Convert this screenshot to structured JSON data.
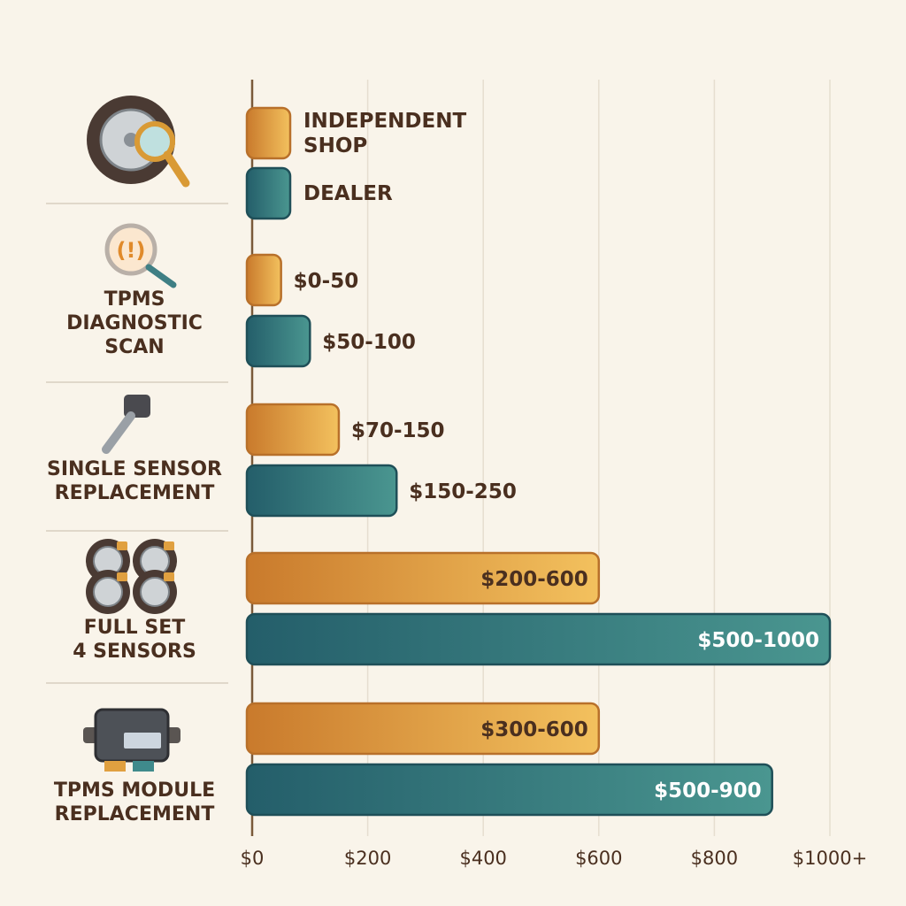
{
  "chart_data": {
    "type": "bar",
    "orientation": "horizontal",
    "legend": [
      {
        "name": "INDEPENDENT SHOP",
        "lines": [
          "INDEPENDENT",
          "SHOP"
        ],
        "color": "#e0a040"
      },
      {
        "name": "DEALER",
        "lines": [
          "DEALER"
        ],
        "color": "#2f7a7c"
      }
    ],
    "legend_placement": "top",
    "categories": [
      {
        "lines": [
          "TPMS",
          "DIAGNOSTIC",
          "SCAN"
        ],
        "icon": "tpms-warning-magnifier-icon"
      },
      {
        "lines": [
          "SINGLE SENSOR",
          "REPLACEMENT"
        ],
        "icon": "tpms-sensor-valve-icon"
      },
      {
        "lines": [
          "FULL SET",
          "4 SENSORS"
        ],
        "icon": "four-tires-icon"
      },
      {
        "lines": [
          "TPMS MODULE",
          "REPLACEMENT"
        ],
        "icon": "control-module-icon"
      }
    ],
    "series": [
      {
        "name": "INDEPENDENT SHOP",
        "color": "#e0a040",
        "ranges": [
          [
            0,
            50
          ],
          [
            70,
            150
          ],
          [
            200,
            600
          ],
          [
            300,
            600
          ]
        ],
        "labels": [
          "$0-50",
          "$70-150",
          "$200-600",
          "$300-600"
        ]
      },
      {
        "name": "DEALER",
        "color": "#2f7a7c",
        "ranges": [
          [
            50,
            100
          ],
          [
            150,
            250
          ],
          [
            500,
            1000
          ],
          [
            500,
            900
          ]
        ],
        "labels": [
          "$50-100",
          "$150-250",
          "$500-1000",
          "$500-900"
        ]
      }
    ],
    "xlim": [
      0,
      1000
    ],
    "x_ticks": [
      "$0",
      "$200",
      "$400",
      "$600",
      "$800",
      "$1000+"
    ],
    "grid": true,
    "title": "",
    "xlabel": "",
    "ylabel": ""
  }
}
